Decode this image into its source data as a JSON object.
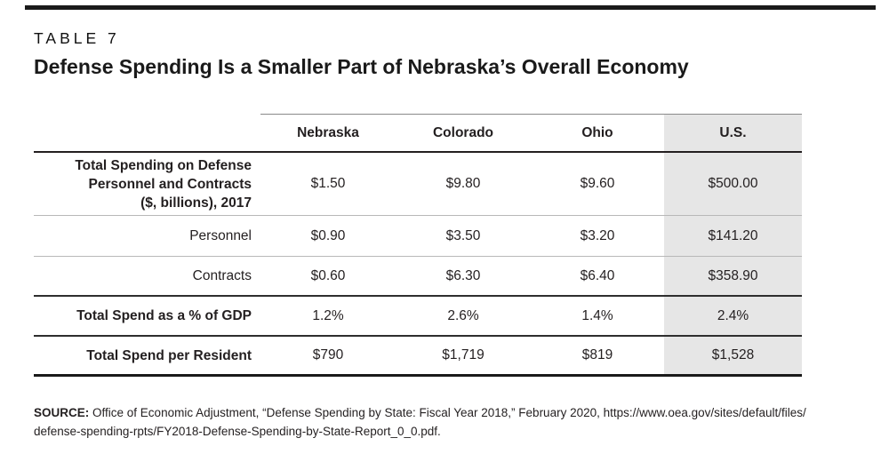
{
  "page": {
    "kicker": "TABLE 7",
    "title": "Defense Spending Is a Smaller Part of Nebraska’s Overall Economy"
  },
  "table": {
    "columns": [
      "Nebraska",
      "Colorado",
      "Ohio",
      "U.S."
    ],
    "highlighted_column": "U.S.",
    "rows": [
      {
        "label_lines": [
          "Total Spending on Defense",
          "Personnel and Contracts",
          "($, billions), 2017"
        ],
        "values": [
          "$1.50",
          "$9.80",
          "$9.60",
          "$500.00"
        ]
      },
      {
        "label": "Personnel",
        "values": [
          "$0.90",
          "$3.50",
          "$3.20",
          "$141.20"
        ]
      },
      {
        "label": "Contracts",
        "values": [
          "$0.60",
          "$6.30",
          "$6.40",
          "$358.90"
        ]
      },
      {
        "label": "Total Spend as a % of GDP",
        "values": [
          "1.2%",
          "2.6%",
          "1.4%",
          "2.4%"
        ]
      },
      {
        "label": "Total Spend per Resident",
        "values": [
          "$790",
          "$1,719",
          "$819",
          "$1,528"
        ]
      }
    ]
  },
  "source": {
    "label": "SOURCE:",
    "lines": [
      "Office of Economic Adjustment, “Defense Spending by State: Fiscal Year 2018,” February 2020, https://www.oea.gov/sites/default/files/",
      "defense-spending-rpts/FY2018-Defense-Spending-by-State-Report_0_0.pdf."
    ]
  },
  "colors": {
    "highlight_bg": "#e6e6e6",
    "rule_black": "#1a1a1a",
    "separator_light": "#b8b8b8",
    "separator_dark": "#2e2e2e"
  }
}
